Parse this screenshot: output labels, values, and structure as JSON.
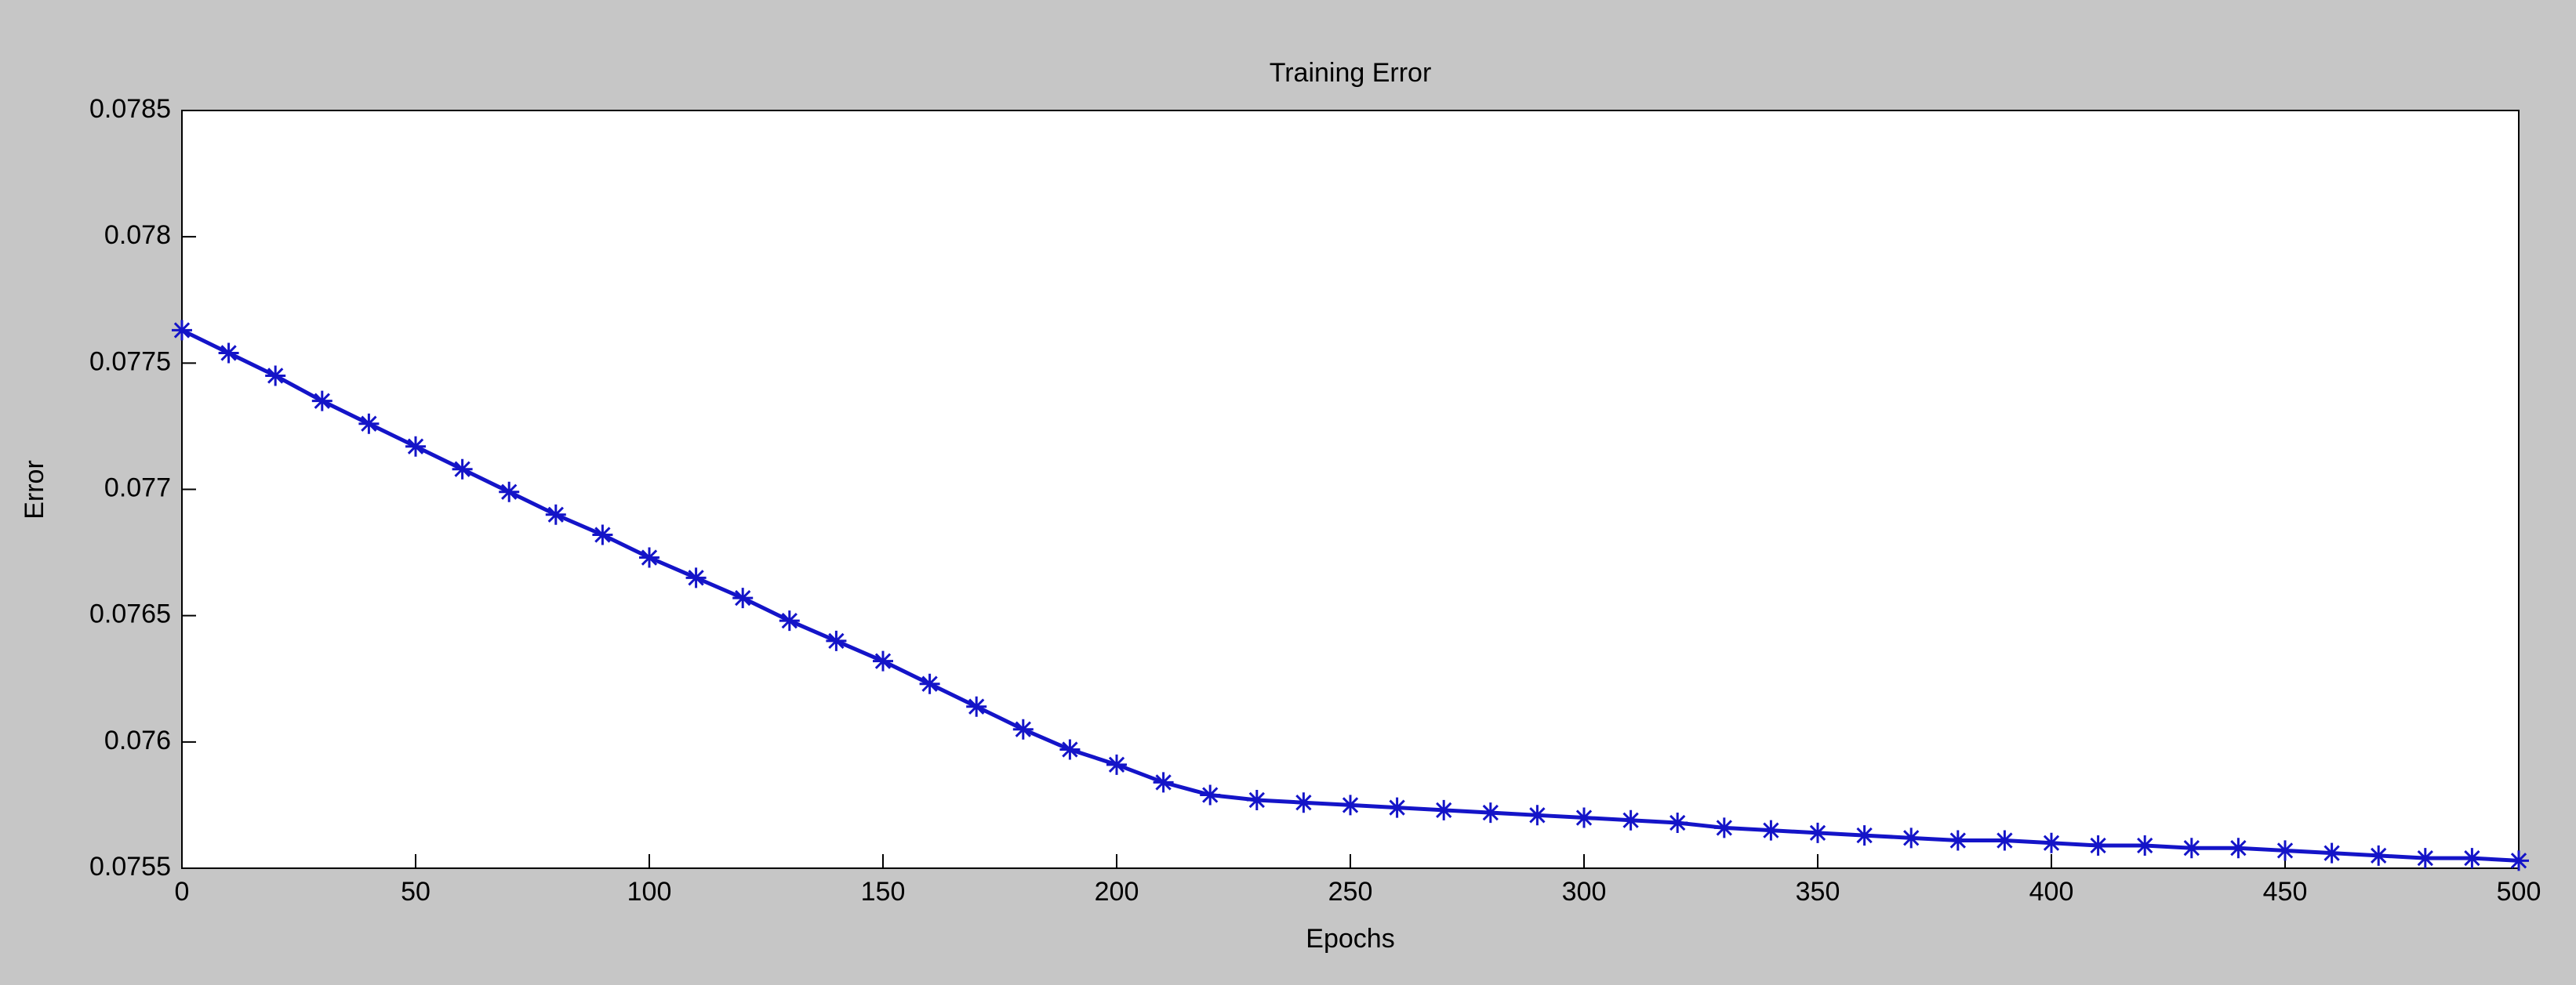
{
  "chart_data": {
    "type": "line",
    "title": "Training Error",
    "x_label": "Epochs",
    "y_label": "Error",
    "x": [
      0,
      10,
      20,
      30,
      40,
      50,
      60,
      70,
      80,
      90,
      100,
      110,
      120,
      130,
      140,
      150,
      160,
      170,
      180,
      190,
      200,
      210,
      220,
      230,
      240,
      250,
      260,
      270,
      280,
      290,
      300,
      310,
      320,
      330,
      340,
      350,
      360,
      370,
      380,
      390,
      400,
      410,
      420,
      430,
      440,
      450,
      460,
      470,
      480,
      490,
      500
    ],
    "series": [
      {
        "name": "Training Error",
        "color": "#1414c8",
        "values": [
          0.07763,
          0.07754,
          0.07745,
          0.07735,
          0.07726,
          0.07717,
          0.07708,
          0.07699,
          0.0769,
          0.07682,
          0.07673,
          0.07665,
          0.07657,
          0.07648,
          0.0764,
          0.07632,
          0.07623,
          0.07614,
          0.07605,
          0.07597,
          0.07591,
          0.07584,
          0.07579,
          0.07577,
          0.07576,
          0.07575,
          0.07574,
          0.07573,
          0.07572,
          0.07571,
          0.0757,
          0.07569,
          0.07568,
          0.07566,
          0.07565,
          0.07564,
          0.07563,
          0.07562,
          0.07561,
          0.07561,
          0.0756,
          0.07559,
          0.07559,
          0.07558,
          0.07558,
          0.07557,
          0.07556,
          0.07555,
          0.07554,
          0.07554,
          0.07553
        ]
      }
    ],
    "xlim": [
      0,
      500
    ],
    "xticks": [
      0,
      50,
      100,
      150,
      200,
      250,
      300,
      350,
      400,
      450,
      500
    ],
    "ylim": [
      0.0755,
      0.0785
    ],
    "yticks": [
      0.0755,
      0.076,
      0.0765,
      0.077,
      0.0775,
      0.078,
      0.0785
    ]
  }
}
